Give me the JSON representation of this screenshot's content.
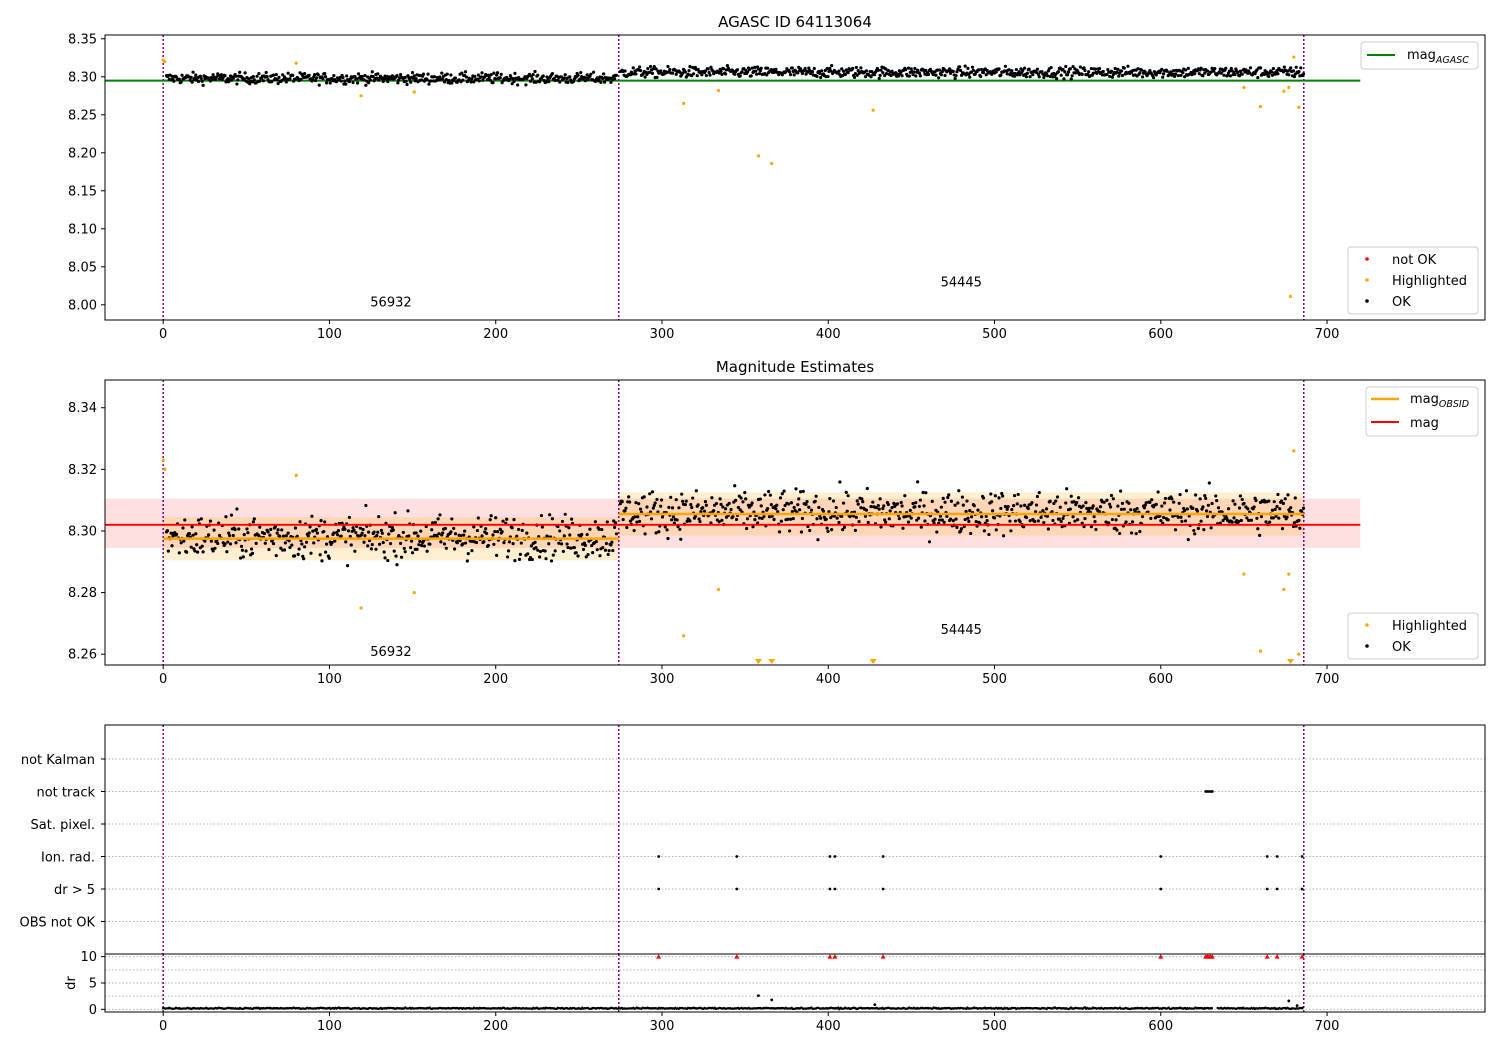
{
  "figure": {
    "title_top": "AGASC ID 64113064",
    "title_mid": "Magnitude Estimates"
  },
  "colors": {
    "ok": "#000000",
    "highlighted": "#ffa500",
    "not_ok": "#ff0000",
    "mag_agasc": "#008000",
    "mag_obsid": "#ffa500",
    "mag": "#ff0000",
    "obs_divider": "#800080",
    "flag_grid": "#b0b0b0"
  },
  "legends": {
    "top_line": {
      "main": "mag",
      "sub": "AGASC"
    },
    "top_points": [
      "not OK",
      "Highlighted",
      "OK"
    ],
    "mid_lines": [
      {
        "main": "mag",
        "sub": "OBSID"
      },
      {
        "main": "mag",
        "sub": ""
      }
    ],
    "mid_points": [
      "Highlighted",
      "OK"
    ]
  },
  "chart_data": [
    {
      "id": "agasc",
      "type": "scatter",
      "title": "AGASC ID 64113064",
      "xlabel": "",
      "ylabel": "",
      "xlim": [
        -35,
        795
      ],
      "ylim": [
        7.98,
        8.355
      ],
      "yticks": [
        8.0,
        8.05,
        8.1,
        8.15,
        8.2,
        8.25,
        8.3,
        8.35
      ],
      "xticks": [
        0,
        100,
        200,
        300,
        400,
        500,
        600,
        700
      ],
      "reference_lines": [
        {
          "name": "mag_AGASC",
          "y": 8.295,
          "x_range": [
            -35,
            720
          ]
        }
      ],
      "obs_boundaries": [
        0,
        274,
        686
      ],
      "obs_labels": [
        {
          "text": "56932",
          "x": 137,
          "y": 7.998
        },
        {
          "text": "54445",
          "x": 480,
          "y": 8.024
        }
      ],
      "highlighted_points": [
        {
          "x": 0,
          "y": 8.322
        },
        {
          "x": 1,
          "y": 8.32
        },
        {
          "x": 80,
          "y": 8.318
        },
        {
          "x": 119,
          "y": 8.275
        },
        {
          "x": 151,
          "y": 8.28
        },
        {
          "x": 313,
          "y": 8.265
        },
        {
          "x": 334,
          "y": 8.282
        },
        {
          "x": 358,
          "y": 8.196
        },
        {
          "x": 366,
          "y": 8.186
        },
        {
          "x": 427,
          "y": 8.256
        },
        {
          "x": 650,
          "y": 8.286
        },
        {
          "x": 660,
          "y": 8.261
        },
        {
          "x": 674,
          "y": 8.281
        },
        {
          "x": 677,
          "y": 8.286
        },
        {
          "x": 678,
          "y": 8.011
        },
        {
          "x": 680,
          "y": 8.326
        },
        {
          "x": 683,
          "y": 8.26
        }
      ],
      "ok_segments": [
        {
          "x_start": 2,
          "x_end": 273,
          "center": 8.298,
          "spread": 0.007
        },
        {
          "x_start": 275,
          "x_end": 686,
          "center": 8.306,
          "spread": 0.007
        }
      ]
    },
    {
      "id": "estimates",
      "type": "scatter",
      "title": "Magnitude Estimates",
      "xlabel": "",
      "ylabel": "",
      "xlim": [
        -35,
        795
      ],
      "ylim": [
        8.2565,
        8.349
      ],
      "yticks": [
        8.26,
        8.28,
        8.3,
        8.32,
        8.34
      ],
      "xticks": [
        0,
        100,
        200,
        300,
        400,
        500,
        600,
        700
      ],
      "mag": {
        "value": 8.302,
        "band": [
          8.2945,
          8.3105
        ],
        "x_range": [
          -35,
          720
        ]
      },
      "mag_obsid": [
        {
          "x_range": [
            0,
            274
          ],
          "value": 8.2975,
          "band": [
            8.2905,
            8.3045
          ]
        },
        {
          "x_range": [
            274,
            686
          ],
          "value": 8.3055,
          "band": [
            8.2985,
            8.3125
          ]
        }
      ],
      "obs_boundaries": [
        0,
        274,
        686
      ],
      "obs_labels": [
        {
          "text": "56932",
          "x": 137,
          "y": 8.2595
        },
        {
          "text": "54445",
          "x": 480,
          "y": 8.2665
        }
      ],
      "highlighted_points": [
        {
          "x": 0,
          "y": 8.323
        },
        {
          "x": 1,
          "y": 8.32
        },
        {
          "x": 80,
          "y": 8.318
        },
        {
          "x": 119,
          "y": 8.275
        },
        {
          "x": 151,
          "y": 8.28
        },
        {
          "x": 313,
          "y": 8.266
        },
        {
          "x": 334,
          "y": 8.281
        },
        {
          "x": 650,
          "y": 8.286
        },
        {
          "x": 660,
          "y": 8.261
        },
        {
          "x": 674,
          "y": 8.281
        },
        {
          "x": 677,
          "y": 8.286
        },
        {
          "x": 680,
          "y": 8.326
        },
        {
          "x": 683,
          "y": 8.26
        }
      ],
      "offscale_points": [
        358,
        366,
        427,
        678
      ],
      "ok_segments": [
        {
          "x_start": 2,
          "x_end": 273,
          "center": 8.298,
          "spread": 0.007
        },
        {
          "x_start": 275,
          "x_end": 686,
          "center": 8.306,
          "spread": 0.007
        }
      ]
    },
    {
      "id": "flags",
      "type": "scatter",
      "xlim": [
        -35,
        795
      ],
      "categories": [
        "not Kalman",
        "not track",
        "Sat. pixel.",
        "Ion. rad.",
        "dr > 5",
        "OBS not OK"
      ],
      "flag_x": {
        "not Kalman": [],
        "not track": [
          627,
          628,
          629,
          630,
          631
        ],
        "Sat. pixel.": [],
        "Ion. rad.": [
          298,
          345,
          401,
          404,
          433,
          600,
          664,
          670,
          685
        ],
        "dr > 5": [
          298,
          345,
          401,
          404,
          433,
          600,
          664,
          670,
          685
        ],
        "OBS not OK": []
      },
      "obs_boundaries": [
        0,
        274,
        686
      ]
    },
    {
      "id": "dr",
      "type": "scatter",
      "ylabel": "dr",
      "xlim": [
        -35,
        795
      ],
      "ylim": [
        -0.5,
        10.5
      ],
      "yticks": [
        0,
        5,
        10
      ],
      "xticks": [
        0,
        100,
        200,
        300,
        400,
        500,
        600,
        700
      ],
      "dr_cap": 10,
      "large_dr_x": [
        298,
        345,
        401,
        404,
        433,
        600,
        627,
        628,
        629,
        630,
        631,
        664,
        670,
        685
      ],
      "notable_points": [
        {
          "x": 358,
          "y": 2.6
        },
        {
          "x": 366,
          "y": 1.8
        },
        {
          "x": 428,
          "y": 0.9
        },
        {
          "x": 677,
          "y": 1.6
        },
        {
          "x": 682,
          "y": 0.7
        }
      ],
      "typical_dr": 0.2,
      "obs_boundaries": [
        0,
        274,
        686
      ]
    }
  ]
}
